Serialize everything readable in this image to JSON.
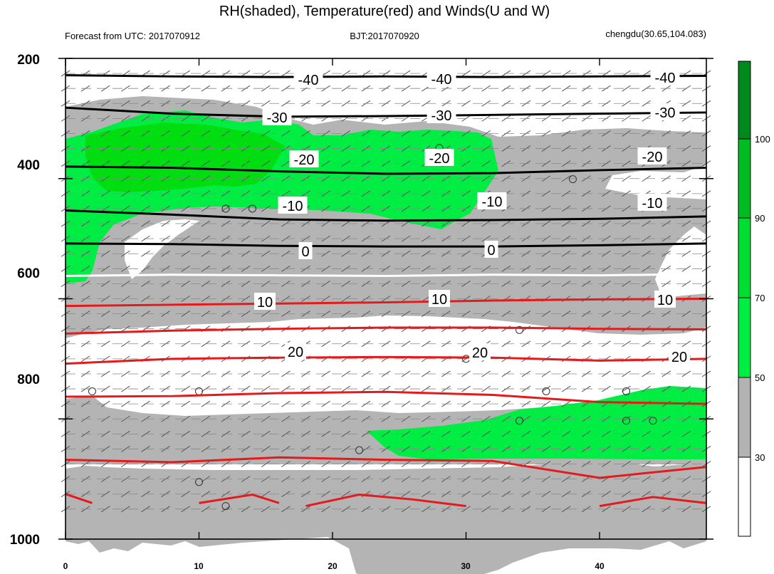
{
  "chart_data": {
    "type": "area",
    "title": "RH(shaded), Temperature(red) and Winds(U and W)",
    "left_string": "Forecast from UTC: 2017070912",
    "center_string": "BJT:2017070920",
    "right_string": "chengdu(30.65,104.083)",
    "xlabel": "",
    "ylabel": "",
    "xlim": [
      0,
      48
    ],
    "ylim": [
      200,
      1000
    ],
    "y_reversed": true,
    "x_ticks": [
      "0",
      "10",
      "20",
      "30",
      "40"
    ],
    "y_ticks": [
      "200",
      "400",
      "600",
      "800",
      "1000"
    ],
    "colorbar": {
      "levels": [
        "30",
        "50",
        "70",
        "90",
        "100"
      ],
      "colors": [
        "#ffffff",
        "#b3b3b3",
        "#00ee44",
        "#00dd33",
        "#00bb22",
        "#008a1e"
      ]
    },
    "temperature_contours": [
      {
        "label": "-40",
        "color": "#000000",
        "x": [
          0,
          8,
          16,
          24,
          32,
          40,
          48
        ],
        "y": [
          228,
          230,
          231,
          230,
          231,
          230,
          229
        ]
      },
      {
        "label": "-30",
        "color": "#000000",
        "x": [
          0,
          8,
          16,
          24,
          32,
          40,
          48
        ],
        "y": [
          282,
          292,
          297,
          296,
          294,
          292,
          290
        ]
      },
      {
        "label": "-20",
        "color": "#000000",
        "x": [
          0,
          8,
          16,
          24,
          32,
          40,
          48
        ],
        "y": [
          380,
          382,
          388,
          392,
          391,
          386,
          382
        ]
      },
      {
        "label": "-10",
        "color": "#000000",
        "x": [
          0,
          8,
          16,
          24,
          32,
          40,
          48
        ],
        "y": [
          453,
          460,
          468,
          470,
          469,
          467,
          463
        ]
      },
      {
        "label": "",
        "color": "#000000",
        "x": [
          0,
          8,
          16,
          24,
          32,
          40,
          48
        ],
        "y": [
          508,
          509,
          512,
          513,
          513,
          511,
          508
        ]
      },
      {
        "label": "0",
        "color": "#ffffff",
        "x": [
          0,
          8,
          16,
          24,
          32,
          40,
          48
        ],
        "y": [
          562,
          560,
          561,
          562,
          560,
          561,
          559
        ]
      },
      {
        "label": "",
        "color": "#e41a1c",
        "x": [
          0,
          8,
          16,
          24,
          32,
          40,
          48
        ],
        "y": [
          612,
          610,
          608,
          606,
          603,
          601,
          600
        ]
      },
      {
        "label": "10",
        "color": "#e41a1c",
        "x": [
          0,
          8,
          16,
          24,
          32,
          40,
          48
        ],
        "y": [
          658,
          653,
          650,
          648,
          648,
          650,
          651
        ]
      },
      {
        "label": "",
        "color": "#e41a1c",
        "x": [
          0,
          8,
          16,
          24,
          32,
          40,
          48
        ],
        "y": [
          708,
          700,
          698,
          697,
          698,
          703,
          700
        ]
      },
      {
        "label": "20",
        "color": "#e41a1c",
        "x": [
          0,
          8,
          16,
          24,
          32,
          40,
          48
        ],
        "y": [
          763,
          762,
          757,
          755,
          760,
          772,
          775
        ]
      }
    ],
    "unlabeled_contour_labels": [
      "-40",
      "-40",
      "-40",
      "-30",
      "-30",
      "-30",
      "-20",
      "-20",
      "-20",
      "-10",
      "-10",
      "-10",
      "0",
      "0",
      "10",
      "10",
      "10",
      "20",
      "20",
      "20"
    ]
  }
}
